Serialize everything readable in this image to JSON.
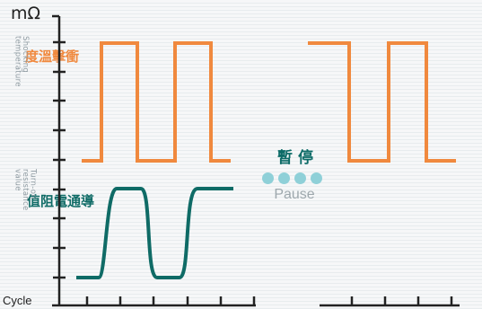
{
  "y_unit": "mΩ",
  "shock_label": {
    "cn": "衝擊溫度",
    "en": "Shocking temperature"
  },
  "resistance_label": {
    "cn": "導通電阻值",
    "en": "Turn-on resistance value"
  },
  "x_label": "Cycle",
  "pause": {
    "cn": "暫停",
    "en": "Pause",
    "dot_count": 4
  },
  "colors": {
    "temperature_line": "#f0893e",
    "resistance_line": "#0f6b66",
    "axis": "#222222",
    "dot": "#8fd0d8"
  }
}
